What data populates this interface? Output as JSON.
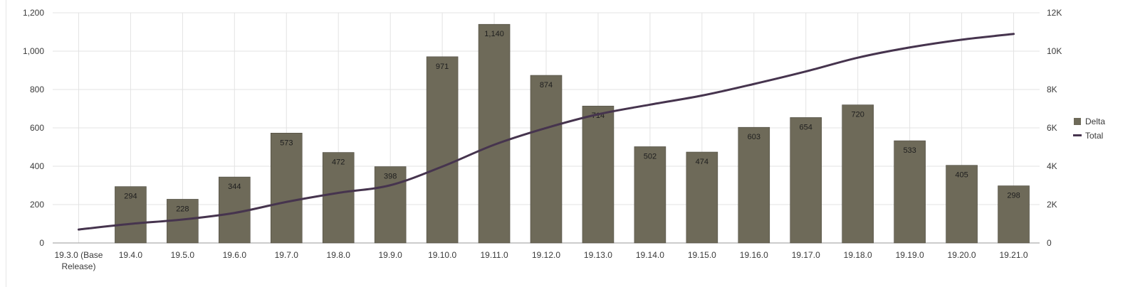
{
  "chart_data": {
    "type": "bar",
    "categories": [
      "19.3.0 (Base Release)",
      "19.4.0",
      "19.5.0",
      "19.6.0",
      "19.7.0",
      "19.8.0",
      "19.9.0",
      "19.10.0",
      "19.11.0",
      "19.12.0",
      "19.13.0",
      "19.14.0",
      "19.15.0",
      "19.16.0",
      "19.17.0",
      "19.18.0",
      "19.19.0",
      "19.20.0",
      "19.21.0"
    ],
    "series": [
      {
        "name": "Delta",
        "type": "bar",
        "axis": "left",
        "color": "#6e6a59",
        "values": [
          null,
          294,
          228,
          344,
          573,
          472,
          398,
          971,
          1140,
          874,
          714,
          502,
          474,
          603,
          654,
          720,
          533,
          405,
          298
        ],
        "labels": [
          "",
          "294",
          "228",
          "344",
          "573",
          "472",
          "398",
          "971",
          "1,140",
          "874",
          "714",
          "502",
          "474",
          "603",
          "654",
          "720",
          "533",
          "405",
          "298"
        ]
      },
      {
        "name": "Total",
        "type": "line",
        "axis": "right",
        "color": "#46344e",
        "values": [
          700,
          994,
          1222,
          1566,
          2139,
          2611,
          3009,
          3980,
          5120,
          5994,
          6708,
          7210,
          7684,
          8287,
          8941,
          9661,
          10194,
          10599,
          10897
        ]
      }
    ],
    "y_left": {
      "min": 0,
      "max": 1200,
      "ticks": [
        0,
        200,
        400,
        600,
        800,
        1000,
        1200
      ],
      "tick_labels": [
        "0",
        "200",
        "400",
        "600",
        "800",
        "1,000",
        "1,200"
      ]
    },
    "y_right": {
      "min": 0,
      "max": 12000,
      "ticks": [
        0,
        2000,
        4000,
        6000,
        8000,
        10000,
        12000
      ],
      "tick_labels": [
        "0",
        "2K",
        "4K",
        "6K",
        "8K",
        "10K",
        "12K"
      ]
    },
    "grid": true,
    "legend_position": "right",
    "title": "",
    "xlabel": "",
    "ylabel": ""
  }
}
